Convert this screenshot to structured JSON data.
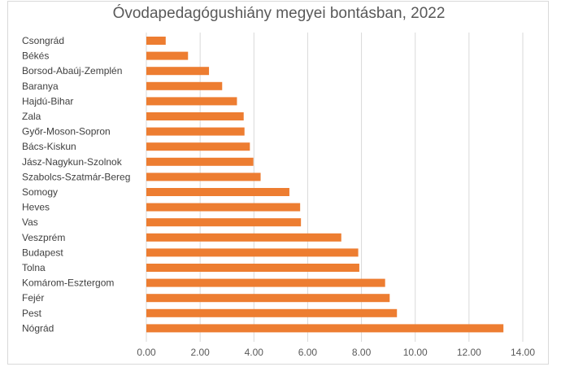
{
  "chart_data": {
    "type": "bar",
    "orientation": "horizontal",
    "title": "Óvodapedagógushiány megyei bontásban, 2022",
    "xlabel": "",
    "ylabel": "",
    "categories": [
      "Csongrád",
      "Békés",
      "Borsod-Abaúj-Zemplén",
      "Baranya",
      "Hajdú-Bihar",
      "Zala",
      "Győr-Moson-Sopron",
      "Bács-Kiskun",
      "Jász-Nagykun-Szolnok",
      "Szabolcs-Szatmár-Bereg",
      "Somogy",
      "Heves",
      "Vas",
      "Veszprém",
      "Budapest",
      "Tolna",
      "Komárom-Esztergom",
      "Fejér",
      "Pest",
      "Nógrád"
    ],
    "values": [
      0.72,
      1.55,
      2.33,
      2.82,
      3.37,
      3.62,
      3.65,
      3.85,
      3.98,
      4.25,
      5.32,
      5.72,
      5.75,
      7.25,
      7.88,
      7.92,
      8.88,
      9.05,
      9.32,
      13.28
    ],
    "xlim": [
      0,
      14
    ],
    "xticks": [
      "0.00",
      "2.00",
      "4.00",
      "6.00",
      "8.00",
      "10.00",
      "12.00",
      "14.00"
    ],
    "grid": true,
    "legend": "none",
    "bar_color": "#ed7d31",
    "grid_color": "#d9d9d9"
  }
}
